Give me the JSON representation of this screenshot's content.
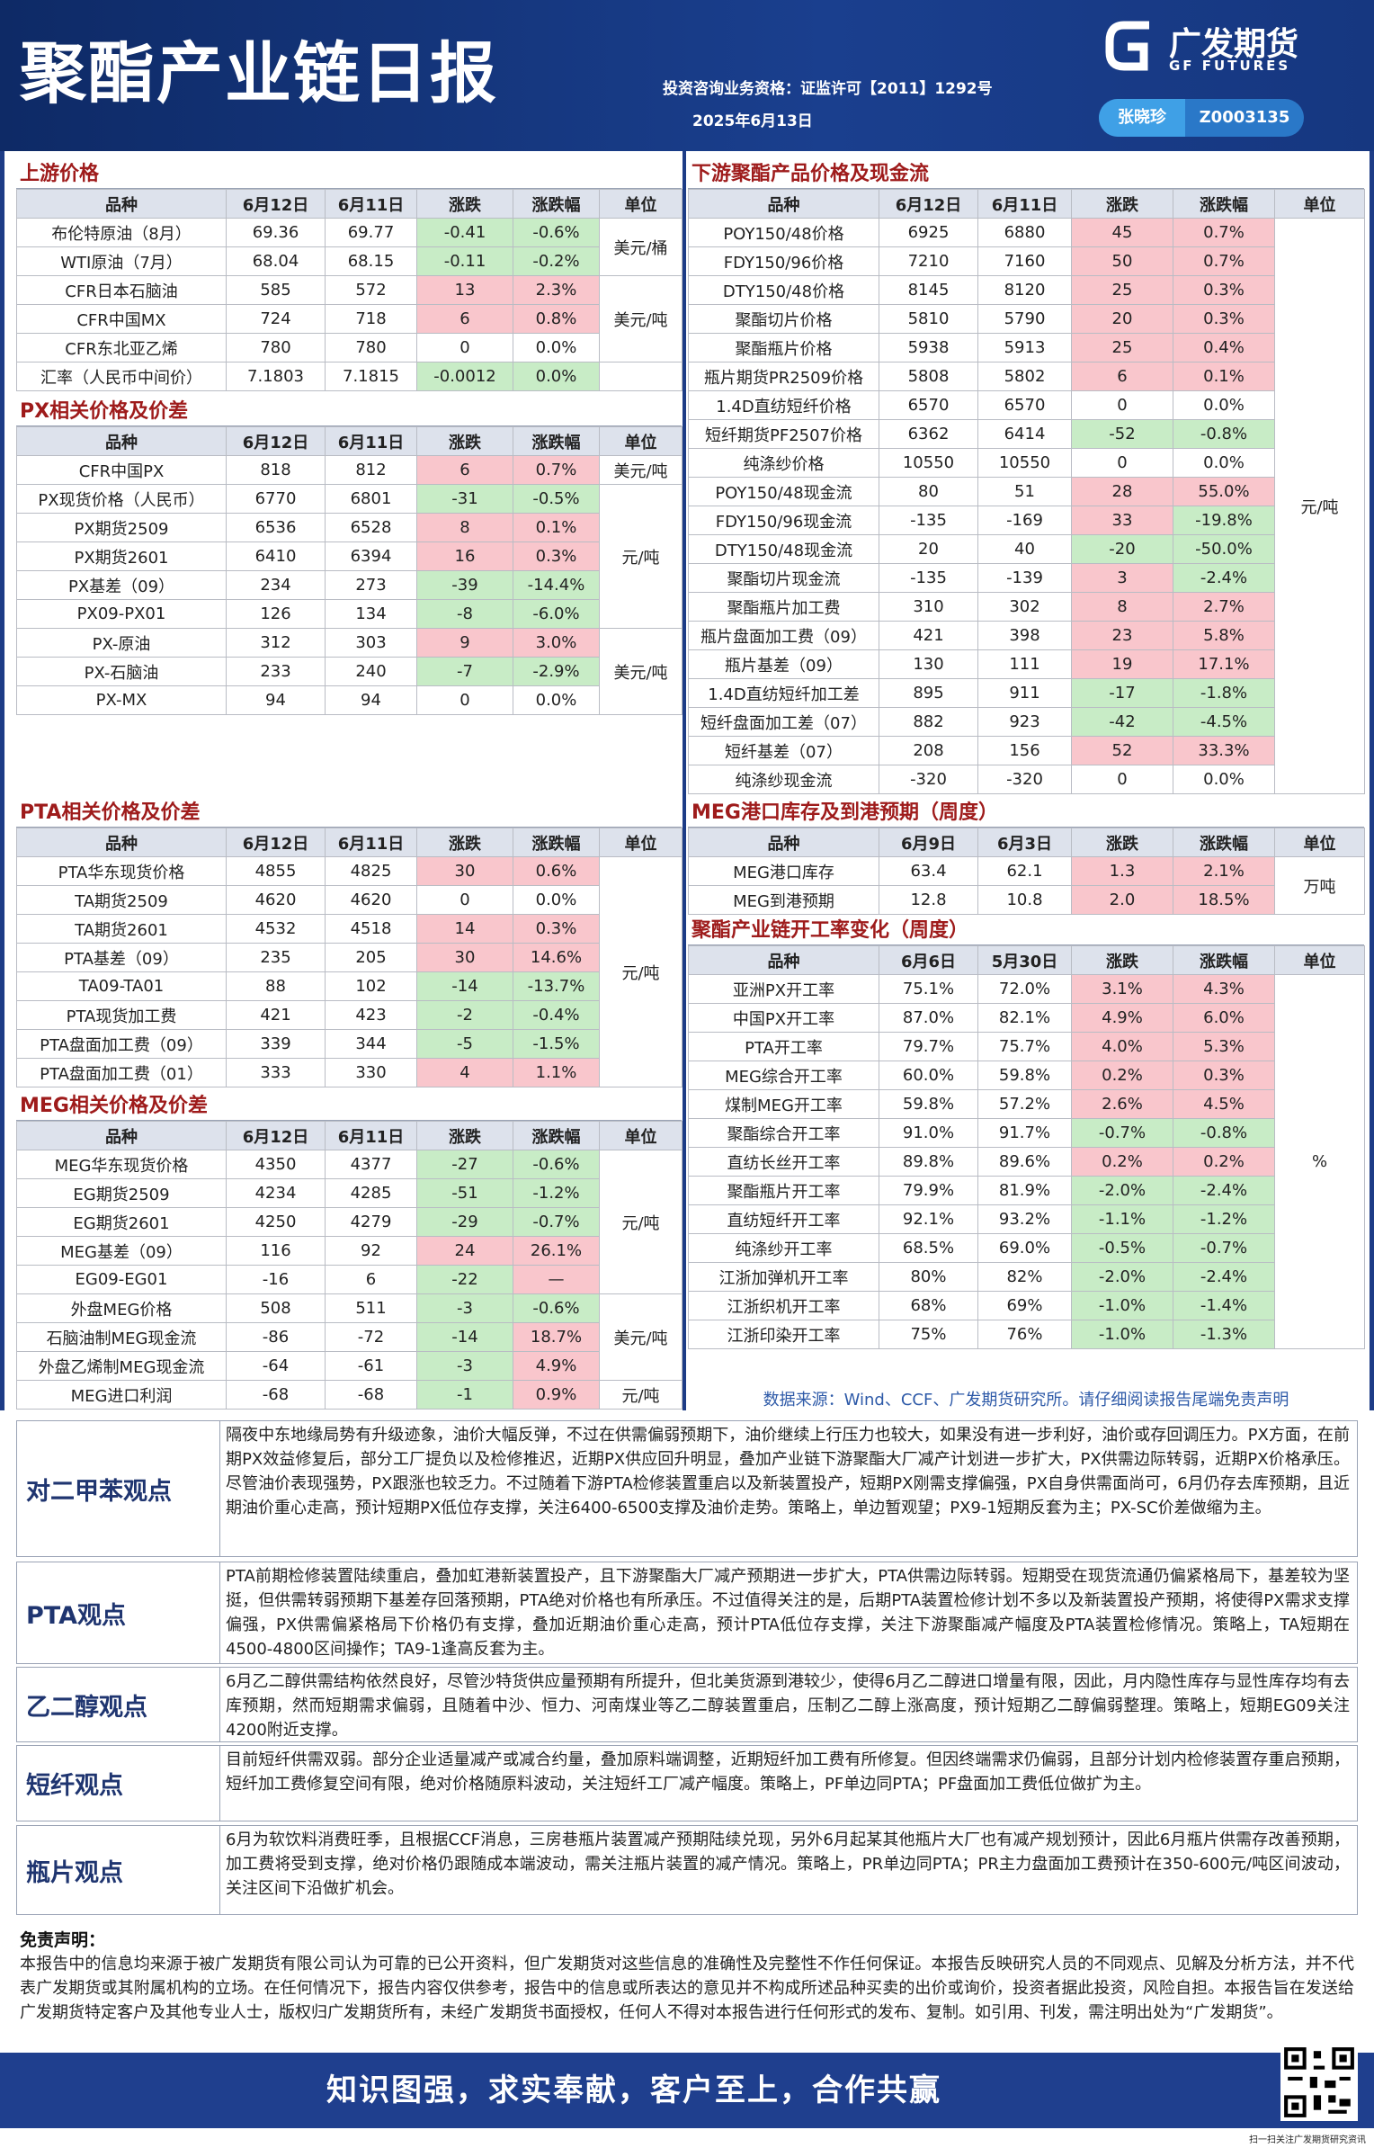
{
  "header": {
    "title": "聚酯产业链日报",
    "qualification": "投资咨询业务资格：证监许可【2011】1292号",
    "date": "2025年6月13日",
    "logo": "广发期货",
    "logo_en": "GF FUTURES",
    "analyst": "张晓珍",
    "analyst_id": "Z0003135"
  },
  "tables": [
    {
      "title": "上游价格",
      "columns": [
        "品种",
        "6月12日",
        "6月11日",
        "涨跌",
        "涨跌幅",
        "单位"
      ],
      "rows": [
        [
          "布伦特原油（8月）",
          "69.36",
          "69.77",
          "-0.41",
          "-0.6%"
        ],
        [
          "WTI原油（7月）",
          "68.04",
          "68.15",
          "-0.11",
          "-0.2%"
        ],
        [
          "CFR日本石脑油",
          "585",
          "572",
          "13",
          "2.3%"
        ],
        [
          "CFR中国MX",
          "724",
          "718",
          "6",
          "0.8%"
        ],
        [
          "CFR东北亚乙烯",
          "780",
          "780",
          "0",
          "0.0%"
        ],
        [
          "汇率（人民币中间价）",
          "7.1803",
          "7.1815",
          "-0.0012",
          "0.0%"
        ]
      ],
      "fills": [
        [
          "#c8ecc6",
          "#c8ecc6"
        ],
        [
          "#c8ecc6",
          "#c8ecc6"
        ],
        [
          "#f9c6cc",
          "#f9c6cc"
        ],
        [
          "#f9c6cc",
          "#f9c6cc"
        ],
        null,
        [
          "#c8ecc6",
          "#c8ecc6"
        ]
      ],
      "units": [
        {
          "text": "美元/桶",
          "rows": [
            0,
            1
          ]
        },
        {
          "text": "美元/吨",
          "rows": [
            2,
            3,
            4
          ]
        }
      ]
    },
    {
      "title": "PX相关价格及价差",
      "columns": [
        "品种",
        "6月12日",
        "6月11日",
        "涨跌",
        "涨跌幅",
        "单位"
      ],
      "rows": [
        [
          "CFR中国PX",
          "818",
          "812",
          "6",
          "0.7%"
        ],
        [
          "PX现货价格（人民币）",
          "6770",
          "6801",
          "-31",
          "-0.5%"
        ],
        [
          "PX期货2509",
          "6536",
          "6528",
          "8",
          "0.1%"
        ],
        [
          "PX期货2601",
          "6410",
          "6394",
          "16",
          "0.3%"
        ],
        [
          "PX基差（09）",
          "234",
          "273",
          "-39",
          "-14.4%"
        ],
        [
          "PX09-PX01",
          "126",
          "134",
          "-8",
          "-6.0%"
        ],
        [
          "PX-原油",
          "312",
          "303",
          "9",
          "3.0%"
        ],
        [
          "PX-石脑油",
          "233",
          "240",
          "-7",
          "-2.9%"
        ],
        [
          "PX-MX",
          "94",
          "94",
          "0",
          "0.0%"
        ]
      ],
      "fills": [
        [
          "#f9c6cc",
          "#f9c6cc"
        ],
        [
          "#c8ecc6",
          "#c8ecc6"
        ],
        [
          "#f9c6cc",
          "#f9c6cc"
        ],
        [
          "#f9c6cc",
          "#f9c6cc"
        ],
        [
          "#c8ecc6",
          "#c8ecc6"
        ],
        [
          "#c8ecc6",
          "#c8ecc6"
        ],
        [
          "#f9c6cc",
          "#f9c6cc"
        ],
        [
          "#c8ecc6",
          "#c8ecc6"
        ],
        null
      ],
      "units": [
        {
          "text": "美元/吨",
          "rows": [
            0
          ]
        },
        {
          "text": "元/吨",
          "rows": [
            1,
            2,
            3,
            4,
            5
          ]
        },
        {
          "text": "美元/吨",
          "rows": [
            6,
            7,
            8
          ]
        }
      ]
    },
    {
      "title": "PTA相关价格及价差",
      "columns": [
        "品种",
        "6月12日",
        "6月11日",
        "涨跌",
        "涨跌幅",
        "单位"
      ],
      "rows": [
        [
          "PTA华东现货价格",
          "4855",
          "4825",
          "30",
          "0.6%"
        ],
        [
          "TA期货2509",
          "4620",
          "4620",
          "0",
          "0.0%"
        ],
        [
          "TA期货2601",
          "4532",
          "4518",
          "14",
          "0.3%"
        ],
        [
          "PTA基差（09）",
          "235",
          "205",
          "30",
          "14.6%"
        ],
        [
          "TA09-TA01",
          "88",
          "102",
          "-14",
          "-13.7%"
        ],
        [
          "PTA现货加工费",
          "421",
          "423",
          "-2",
          "-0.4%"
        ],
        [
          "PTA盘面加工费（09）",
          "339",
          "344",
          "-5",
          "-1.5%"
        ],
        [
          "PTA盘面加工费（01）",
          "333",
          "330",
          "4",
          "1.1%"
        ]
      ],
      "fills": [
        [
          "#f9c6cc",
          "#f9c6cc"
        ],
        null,
        [
          "#f9c6cc",
          "#f9c6cc"
        ],
        [
          "#f9c6cc",
          "#f9c6cc"
        ],
        [
          "#c8ecc6",
          "#c8ecc6"
        ],
        [
          "#c8ecc6",
          "#c8ecc6"
        ],
        [
          "#c8ecc6",
          "#c8ecc6"
        ],
        [
          "#f9c6cc",
          "#f9c6cc"
        ]
      ],
      "units": [
        {
          "text": "元/吨",
          "rows": [
            0,
            1,
            2,
            3,
            4,
            5,
            6,
            7
          ]
        }
      ]
    },
    {
      "title": "MEG相关价格及价差",
      "columns": [
        "品种",
        "6月12日",
        "6月11日",
        "涨跌",
        "涨跌幅",
        "单位"
      ],
      "rows": [
        [
          "MEG华东现货价格",
          "4350",
          "4377",
          "-27",
          "-0.6%"
        ],
        [
          "EG期货2509",
          "4234",
          "4285",
          "-51",
          "-1.2%"
        ],
        [
          "EG期货2601",
          "4250",
          "4279",
          "-29",
          "-0.7%"
        ],
        [
          "MEG基差（09）",
          "116",
          "92",
          "24",
          "26.1%"
        ],
        [
          "EG09-EG01",
          "-16",
          "6",
          "-22",
          "—"
        ],
        [
          "外盘MEG价格",
          "508",
          "511",
          "-3",
          "-0.6%"
        ],
        [
          "石脑油制MEG现金流",
          "-86",
          "-72",
          "-14",
          "18.7%"
        ],
        [
          "外盘乙烯制MEG现金流",
          "-64",
          "-61",
          "-3",
          "4.9%"
        ],
        [
          "MEG进口利润",
          "-68",
          "-68",
          "-1",
          "0.9%"
        ]
      ],
      "fills": [
        [
          "#c8ecc6",
          "#c8ecc6"
        ],
        [
          "#c8ecc6",
          "#c8ecc6"
        ],
        [
          "#c8ecc6",
          "#c8ecc6"
        ],
        [
          "#f9c6cc",
          "#f9c6cc"
        ],
        [
          "#c8ecc6",
          "#f9c6cc"
        ],
        [
          "#c8ecc6",
          "#c8ecc6"
        ],
        [
          "#c8ecc6",
          "#f9c6cc"
        ],
        [
          "#c8ecc6",
          "#f9c6cc"
        ],
        [
          "#c8ecc6",
          "#f9c6cc"
        ]
      ],
      "units": [
        {
          "text": "元/吨",
          "rows": [
            0,
            1,
            2,
            3,
            4
          ]
        },
        {
          "text": "美元/吨",
          "rows": [
            5,
            6,
            7
          ]
        },
        {
          "text": "元/吨",
          "rows": [
            8
          ]
        }
      ]
    },
    {
      "title": "下游聚酯产品价格及现金流",
      "columns": [
        "品种",
        "6月12日",
        "6月11日",
        "涨跌",
        "涨跌幅",
        "单位"
      ],
      "rows": [
        [
          "POY150/48价格",
          "6925",
          "6880",
          "45",
          "0.7%"
        ],
        [
          "FDY150/96价格",
          "7210",
          "7160",
          "50",
          "0.7%"
        ],
        [
          "DTY150/48价格",
          "8145",
          "8120",
          "25",
          "0.3%"
        ],
        [
          "聚酯切片价格",
          "5810",
          "5790",
          "20",
          "0.3%"
        ],
        [
          "聚酯瓶片价格",
          "5938",
          "5913",
          "25",
          "0.4%"
        ],
        [
          "瓶片期货PR2509价格",
          "5808",
          "5802",
          "6",
          "0.1%"
        ],
        [
          "1.4D直纺短纤价格",
          "6570",
          "6570",
          "0",
          "0.0%"
        ],
        [
          "短纤期货PF2507价格",
          "6362",
          "6414",
          "-52",
          "-0.8%"
        ],
        [
          "纯涤纱价格",
          "10550",
          "10550",
          "0",
          "0.0%"
        ],
        [
          "POY150/48现金流",
          "80",
          "51",
          "28",
          "55.0%"
        ],
        [
          "FDY150/96现金流",
          "-135",
          "-169",
          "33",
          "-19.8%"
        ],
        [
          "DTY150/48现金流",
          "20",
          "40",
          "-20",
          "-50.0%"
        ],
        [
          "聚酯切片现金流",
          "-135",
          "-139",
          "3",
          "-2.4%"
        ],
        [
          "聚酯瓶片加工费",
          "310",
          "302",
          "8",
          "2.7%"
        ],
        [
          "瓶片盘面加工费（09）",
          "421",
          "398",
          "23",
          "5.8%"
        ],
        [
          "瓶片基差（09）",
          "130",
          "111",
          "19",
          "17.1%"
        ],
        [
          "1.4D直纺短纤加工差",
          "895",
          "911",
          "-17",
          "-1.8%"
        ],
        [
          "短纤盘面加工差（07）",
          "882",
          "923",
          "-42",
          "-4.5%"
        ],
        [
          "短纤基差（07）",
          "208",
          "156",
          "52",
          "33.3%"
        ],
        [
          "纯涤纱现金流",
          "-320",
          "-320",
          "0",
          "0.0%"
        ]
      ],
      "fills": [
        [
          "#f9c6cc",
          "#f9c6cc"
        ],
        [
          "#f9c6cc",
          "#f9c6cc"
        ],
        [
          "#f9c6cc",
          "#f9c6cc"
        ],
        [
          "#f9c6cc",
          "#f9c6cc"
        ],
        [
          "#f9c6cc",
          "#f9c6cc"
        ],
        [
          "#f9c6cc",
          "#f9c6cc"
        ],
        null,
        [
          "#c8ecc6",
          "#c8ecc6"
        ],
        null,
        [
          "#f9c6cc",
          "#f9c6cc"
        ],
        [
          "#f9c6cc",
          "#c8ecc6"
        ],
        [
          "#c8ecc6",
          "#c8ecc6"
        ],
        [
          "#f9c6cc",
          "#c8ecc6"
        ],
        [
          "#f9c6cc",
          "#f9c6cc"
        ],
        [
          "#f9c6cc",
          "#f9c6cc"
        ],
        [
          "#f9c6cc",
          "#f9c6cc"
        ],
        [
          "#c8ecc6",
          "#c8ecc6"
        ],
        [
          "#c8ecc6",
          "#c8ecc6"
        ],
        [
          "#f9c6cc",
          "#f9c6cc"
        ],
        null
      ],
      "units": [
        {
          "text": "元/吨",
          "rows": [
            0,
            1,
            2,
            3,
            4,
            5,
            6,
            7,
            8,
            9,
            10,
            11,
            12,
            13,
            14,
            15,
            16,
            17,
            18,
            19
          ]
        }
      ]
    },
    {
      "title": "MEG港口库存及到港预期（周度）",
      "columns": [
        "品种",
        "6月9日",
        "6月3日",
        "涨跌",
        "涨跌幅",
        "单位"
      ],
      "rows": [
        [
          "MEG港口库存",
          "63.4",
          "62.1",
          "1.3",
          "2.1%"
        ],
        [
          "MEG到港预期",
          "12.8",
          "10.8",
          "2.0",
          "18.5%"
        ]
      ],
      "fills": [
        [
          "#f9c6cc",
          "#f9c6cc"
        ],
        [
          "#f9c6cc",
          "#f9c6cc"
        ]
      ],
      "units": [
        {
          "text": "万吨",
          "rows": [
            0,
            1
          ]
        }
      ]
    },
    {
      "title": "聚酯产业链开工率变化（周度）",
      "columns": [
        "品种",
        "6月6日",
        "5月30日",
        "涨跌",
        "涨跌幅",
        "单位"
      ],
      "rows": [
        [
          "亚洲PX开工率",
          "75.1%",
          "72.0%",
          "3.1%",
          "4.3%"
        ],
        [
          "中国PX开工率",
          "87.0%",
          "82.1%",
          "4.9%",
          "6.0%"
        ],
        [
          "PTA开工率",
          "79.7%",
          "75.7%",
          "4.0%",
          "5.3%"
        ],
        [
          "MEG综合开工率",
          "60.0%",
          "59.8%",
          "0.2%",
          "0.3%"
        ],
        [
          "煤制MEG开工率",
          "59.8%",
          "57.2%",
          "2.6%",
          "4.5%"
        ],
        [
          "聚酯综合开工率",
          "91.0%",
          "91.7%",
          "-0.7%",
          "-0.8%"
        ],
        [
          "直纺长丝开工率",
          "89.8%",
          "89.6%",
          "0.2%",
          "0.2%"
        ],
        [
          "聚酯瓶片开工率",
          "79.9%",
          "81.9%",
          "-2.0%",
          "-2.4%"
        ],
        [
          "直纺短纤开工率",
          "92.1%",
          "93.2%",
          "-1.1%",
          "-1.2%"
        ],
        [
          "纯涤纱开工率",
          "68.5%",
          "69.0%",
          "-0.5%",
          "-0.7%"
        ],
        [
          "江浙加弹机开工率",
          "80%",
          "82%",
          "-2.0%",
          "-2.4%"
        ],
        [
          "江浙织机开工率",
          "68%",
          "69%",
          "-1.0%",
          "-1.4%"
        ],
        [
          "江浙印染开工率",
          "75%",
          "76%",
          "-1.0%",
          "-1.3%"
        ]
      ],
      "fills": [
        [
          "#f9c6cc",
          "#f9c6cc"
        ],
        [
          "#f9c6cc",
          "#f9c6cc"
        ],
        [
          "#f9c6cc",
          "#f9c6cc"
        ],
        [
          "#f9c6cc",
          "#f9c6cc"
        ],
        [
          "#f9c6cc",
          "#f9c6cc"
        ],
        [
          "#c8ecc6",
          "#c8ecc6"
        ],
        [
          "#f9c6cc",
          "#f9c6cc"
        ],
        [
          "#c8ecc6",
          "#c8ecc6"
        ],
        [
          "#c8ecc6",
          "#c8ecc6"
        ],
        [
          "#c8ecc6",
          "#c8ecc6"
        ],
        [
          "#c8ecc6",
          "#c8ecc6"
        ],
        [
          "#c8ecc6",
          "#c8ecc6"
        ],
        [
          "#c8ecc6",
          "#c8ecc6"
        ]
      ],
      "units": [
        {
          "text": "%",
          "rows": [
            0,
            1,
            2,
            3,
            4,
            5,
            6,
            7,
            8,
            9,
            10,
            11,
            12
          ]
        }
      ]
    }
  ],
  "source": "数据来源：Wind、CCF、广发期货研究所。请仔细阅读报告尾端免责声明",
  "views": [
    {
      "title": "对二甲苯观点",
      "text": "隔夜中东地缘局势有升级迹象，油价大幅反弹，不过在供需偏弱预期下，油价继续上行压力也较大，如果没有进一步利好，油价或存回调压力。PX方面，在前期PX效益修复后，部分工厂提负以及检修推迟，近期PX供应回升明显，叠加产业链下游聚酯大厂减产计划进一步扩大，PX供需边际转弱，近期PX价格承压。尽管油价表现强势，PX跟涨也较乏力。不过随着下游PTA检修装置重启以及新装置投产，短期PX刚需支撑偏强，PX自身供需面尚可，6月仍存去库预期，且近期油价重心走高，预计短期PX低位存支撑，关注6400-6500支撑及油价走势。策略上，单边暂观望；PX9-1短期反套为主；PX-SC价差做缩为主。"
    },
    {
      "title": "PTA观点",
      "text": "PTA前期检修装置陆续重启，叠加虹港新装置投产，且下游聚酯大厂减产预期进一步扩大，PTA供需边际转弱。短期受在现货流通仍偏紧格局下，基差较为坚挺，但供需转弱预期下基差存回落预期，PTA绝对价格也有所承压。不过值得关注的是，后期PTA装置检修计划不多以及新装置投产预期，将使得PX需求支撑偏强，PX供需偏紧格局下价格仍有支撑，叠加近期油价重心走高，预计PTA低位存支撑，关注下游聚酯减产幅度及PTA装置检修情况。策略上，TA短期在4500-4800区间操作；TA9-1逢高反套为主。"
    },
    {
      "title": "乙二醇观点",
      "text": "6月乙二醇供需结构依然良好，尽管沙特货供应量预期有所提升，但北美货源到港较少，使得6月乙二醇进口增量有限，因此，月内隐性库存与显性库存均有去库预期，然而短期需求偏弱，且随着中沙、恒力、河南煤业等乙二醇装置重启，压制乙二醇上涨高度，预计短期乙二醇偏弱整理。策略上，短期EG09关注4200附近支撑。"
    },
    {
      "title": "短纤观点",
      "text": "目前短纤供需双弱。部分企业适量减产或减合约量，叠加原料端调整，近期短纤加工费有所修复。但因终端需求仍偏弱，且部分计划内检修装置存重启预期，短纤加工费修复空间有限，绝对价格随原料波动，关注短纤工厂减产幅度。策略上，PF单边同PTA；PF盘面加工费低位做扩为主。"
    },
    {
      "title": "瓶片观点",
      "text": "6月为软饮料消费旺季，且根据CCF消息，三房巷瓶片装置减产预期陆续兑现，另外6月起某其他瓶片大厂也有减产规划预计，因此6月瓶片供需存改善预期，加工费将受到支撑，绝对价格仍跟随成本端波动，需关注瓶片装置的减产情况。策略上，PR单边同PTA；PR主力盘面加工费预计在350-600元/吨区间波动，关注区间下沿做扩机会。"
    }
  ],
  "disclaimer": {
    "title": "免责声明：",
    "text": "本报告中的信息均来源于被广发期货有限公司认为可靠的已公开资料，但广发期货对这些信息的准确性及完整性不作任何保证。本报告反映研究人员的不同观点、见解及分析方法，并不代表广发期货或其附属机构的立场。在任何情况下，报告内容仅供参考，报告中的信息或所表达的意见并不构成所述品种买卖的出价或询价，投资者据此投资，风险自担。本报告旨在发送给广发期货特定客户及其他专业人士，版权归广发期货所有，未经广发期货书面授权，任何人不得对本报告进行任何形式的发布、复制。如引用、刊发，需注明出处为“广发期货”。"
  },
  "footer": {
    "slogan": "知识图强，求实奉献，客户至上，合作共赢",
    "qr_caption": "扫一扫关注广发期货研究资讯"
  }
}
